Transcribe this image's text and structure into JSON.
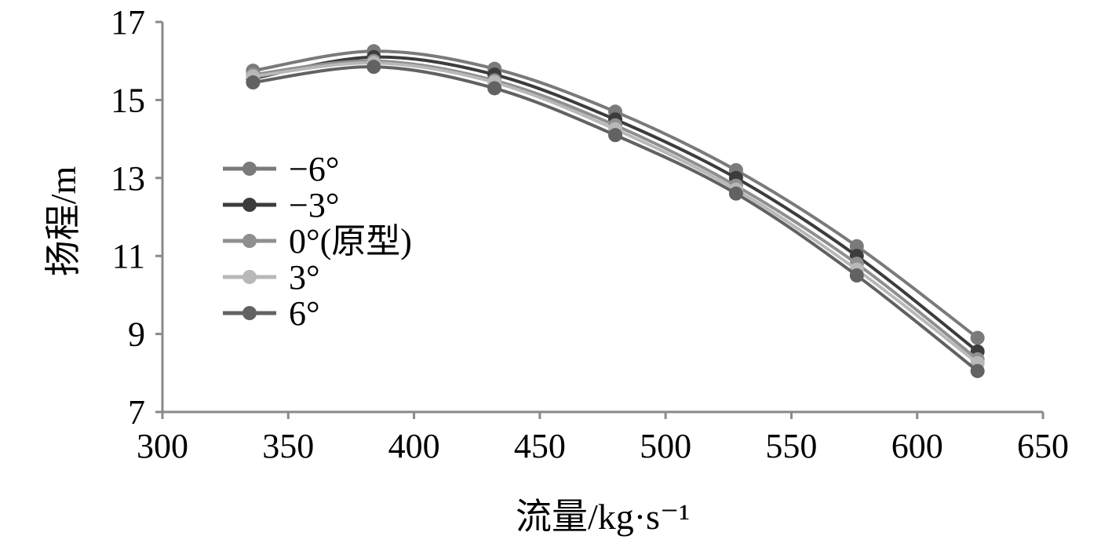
{
  "chart_data": {
    "type": "line",
    "title": "",
    "xlabel": "流量/kg·s⁻¹",
    "ylabel": "扬程/m",
    "xlim": [
      300,
      650
    ],
    "ylim": [
      7,
      17
    ],
    "x_ticks": [
      300,
      350,
      400,
      450,
      500,
      550,
      600,
      650
    ],
    "y_ticks": [
      7,
      9,
      11,
      13,
      15,
      17
    ],
    "grid": false,
    "legend_position": "left",
    "x": [
      336,
      384,
      432,
      480,
      528,
      576,
      624
    ],
    "series": [
      {
        "name": "−6°",
        "color": "#7a7a7a",
        "values": [
          15.75,
          16.25,
          15.8,
          14.7,
          13.2,
          11.25,
          8.9
        ]
      },
      {
        "name": "−3°",
        "color": "#3c3c3c",
        "values": [
          15.55,
          16.1,
          15.65,
          14.5,
          13.0,
          11.0,
          8.55
        ]
      },
      {
        "name": "0°(原型)",
        "color": "#8f8f8f",
        "values": [
          15.65,
          16.0,
          15.5,
          14.35,
          12.8,
          10.8,
          8.35
        ]
      },
      {
        "name": "3°",
        "color": "#b8b8b8",
        "values": [
          15.6,
          15.95,
          15.45,
          14.25,
          12.7,
          10.65,
          8.25
        ]
      },
      {
        "name": "6°",
        "color": "#626262",
        "values": [
          15.45,
          15.85,
          15.3,
          14.1,
          12.6,
          10.5,
          8.05
        ]
      }
    ]
  }
}
